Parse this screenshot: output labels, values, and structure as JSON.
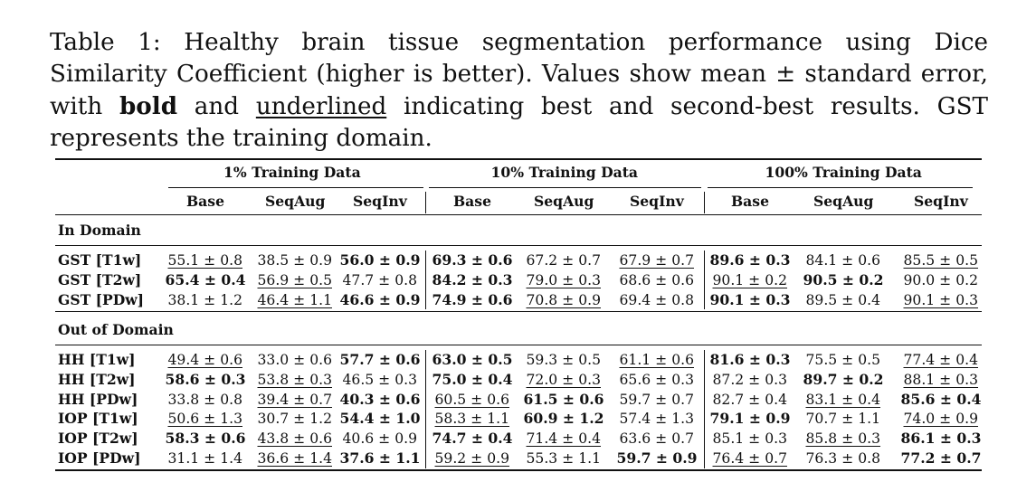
{
  "caption": {
    "part1": "Table 1: Healthy brain tissue segmentation performance using Dice Similarity Coefficient (higher is better). Values show mean ± standard error, with ",
    "bold_word": "bold",
    "part2": " and ",
    "underline_word": "underlined",
    "part3": " indicating best and second-best results. GST represents the training domain."
  },
  "groups": [
    "1% Training Data",
    "10% Training Data",
    "100% Training Data"
  ],
  "subheaders": [
    "Base",
    "SeqAug",
    "SeqInv",
    "Base",
    "SeqAug",
    "SeqInv",
    "Base",
    "SeqAug",
    "SeqInv"
  ],
  "sections": [
    {
      "title": "In Domain",
      "rows": [
        {
          "label": "GST [T1w]",
          "cells": [
            {
              "v": "55.1 ± 0.8",
              "s": "u"
            },
            {
              "v": "38.5 ± 0.9",
              "s": ""
            },
            {
              "v": "56.0 ± 0.9",
              "s": "b"
            },
            {
              "v": "69.3 ± 0.6",
              "s": "b"
            },
            {
              "v": "67.2 ± 0.7",
              "s": ""
            },
            {
              "v": "67.9 ± 0.7",
              "s": "u"
            },
            {
              "v": "89.6 ± 0.3",
              "s": "b"
            },
            {
              "v": "84.1 ± 0.6",
              "s": ""
            },
            {
              "v": "85.5 ± 0.5",
              "s": "u"
            }
          ]
        },
        {
          "label": "GST [T2w]",
          "cells": [
            {
              "v": "65.4 ± 0.4",
              "s": "b"
            },
            {
              "v": "56.9 ± 0.5",
              "s": "u"
            },
            {
              "v": "47.7 ± 0.8",
              "s": ""
            },
            {
              "v": "84.2 ± 0.3",
              "s": "b"
            },
            {
              "v": "79.0 ± 0.3",
              "s": "u"
            },
            {
              "v": "68.6 ± 0.6",
              "s": ""
            },
            {
              "v": "90.1 ± 0.2",
              "s": "u"
            },
            {
              "v": "90.5 ± 0.2",
              "s": "b"
            },
            {
              "v": "90.0 ± 0.2",
              "s": ""
            }
          ]
        },
        {
          "label": "GST [PDw]",
          "cells": [
            {
              "v": "38.1 ± 1.2",
              "s": ""
            },
            {
              "v": "46.4 ± 1.1",
              "s": "u"
            },
            {
              "v": "46.6 ± 0.9",
              "s": "b"
            },
            {
              "v": "74.9 ± 0.6",
              "s": "b"
            },
            {
              "v": "70.8 ± 0.9",
              "s": "u"
            },
            {
              "v": "69.4 ± 0.8",
              "s": ""
            },
            {
              "v": "90.1 ± 0.3",
              "s": "b"
            },
            {
              "v": "89.5 ± 0.4",
              "s": ""
            },
            {
              "v": "90.1 ± 0.3",
              "s": "u"
            }
          ]
        }
      ]
    },
    {
      "title": "Out of Domain",
      "rows": [
        {
          "label": "HH [T1w]",
          "cells": [
            {
              "v": "49.4 ± 0.6",
              "s": "u"
            },
            {
              "v": "33.0 ± 0.6",
              "s": ""
            },
            {
              "v": "57.7 ± 0.6",
              "s": "b"
            },
            {
              "v": "63.0 ± 0.5",
              "s": "b"
            },
            {
              "v": "59.3 ± 0.5",
              "s": ""
            },
            {
              "v": "61.1 ± 0.6",
              "s": "u"
            },
            {
              "v": "81.6 ± 0.3",
              "s": "b"
            },
            {
              "v": "75.5 ± 0.5",
              "s": ""
            },
            {
              "v": "77.4 ± 0.4",
              "s": "u"
            }
          ]
        },
        {
          "label": "HH [T2w]",
          "cells": [
            {
              "v": "58.6 ± 0.3",
              "s": "b"
            },
            {
              "v": "53.8 ± 0.3",
              "s": "u"
            },
            {
              "v": "46.5 ± 0.3",
              "s": ""
            },
            {
              "v": "75.0 ± 0.4",
              "s": "b"
            },
            {
              "v": "72.0 ± 0.3",
              "s": "u"
            },
            {
              "v": "65.6 ± 0.3",
              "s": ""
            },
            {
              "v": "87.2 ± 0.3",
              "s": ""
            },
            {
              "v": "89.7 ± 0.2",
              "s": "b"
            },
            {
              "v": "88.1 ± 0.3",
              "s": "u"
            }
          ]
        },
        {
          "label": "HH [PDw]",
          "cells": [
            {
              "v": "33.8 ± 0.8",
              "s": ""
            },
            {
              "v": "39.4 ± 0.7",
              "s": "u"
            },
            {
              "v": "40.3 ± 0.6",
              "s": "b"
            },
            {
              "v": "60.5 ± 0.6",
              "s": "u"
            },
            {
              "v": "61.5 ± 0.6",
              "s": "b"
            },
            {
              "v": "59.7 ± 0.7",
              "s": ""
            },
            {
              "v": "82.7 ± 0.4",
              "s": ""
            },
            {
              "v": "83.1 ± 0.4",
              "s": "u"
            },
            {
              "v": "85.6 ± 0.4",
              "s": "b"
            }
          ]
        },
        {
          "label": "IOP [T1w]",
          "cells": [
            {
              "v": "50.6 ± 1.3",
              "s": "u"
            },
            {
              "v": "30.7 ± 1.2",
              "s": ""
            },
            {
              "v": "54.4 ± 1.0",
              "s": "b"
            },
            {
              "v": "58.3 ± 1.1",
              "s": "u"
            },
            {
              "v": "60.9 ± 1.2",
              "s": "b"
            },
            {
              "v": "57.4 ± 1.3",
              "s": ""
            },
            {
              "v": "79.1 ± 0.9",
              "s": "b"
            },
            {
              "v": "70.7 ± 1.1",
              "s": ""
            },
            {
              "v": "74.0 ± 0.9",
              "s": "u"
            }
          ]
        },
        {
          "label": "IOP [T2w]",
          "cells": [
            {
              "v": "58.3 ± 0.6",
              "s": "b"
            },
            {
              "v": "43.8 ± 0.6",
              "s": "u"
            },
            {
              "v": "40.6 ± 0.9",
              "s": ""
            },
            {
              "v": "74.7 ± 0.4",
              "s": "b"
            },
            {
              "v": "71.4 ± 0.4",
              "s": "u"
            },
            {
              "v": "63.6 ± 0.7",
              "s": ""
            },
            {
              "v": "85.1 ± 0.3",
              "s": ""
            },
            {
              "v": "85.8 ± 0.3",
              "s": "u"
            },
            {
              "v": "86.1 ± 0.3",
              "s": "b"
            }
          ]
        },
        {
          "label": "IOP [PDw]",
          "cells": [
            {
              "v": "31.1 ± 1.4",
              "s": ""
            },
            {
              "v": "36.6 ± 1.4",
              "s": "u"
            },
            {
              "v": "37.6 ± 1.1",
              "s": "b"
            },
            {
              "v": "59.2 ± 0.9",
              "s": "u"
            },
            {
              "v": "55.3 ± 1.1",
              "s": ""
            },
            {
              "v": "59.7 ± 0.9",
              "s": "b"
            },
            {
              "v": "76.4 ± 0.7",
              "s": "u"
            },
            {
              "v": "76.3 ± 0.8",
              "s": ""
            },
            {
              "v": "77.2 ± 0.7",
              "s": "b"
            }
          ]
        }
      ]
    }
  ]
}
